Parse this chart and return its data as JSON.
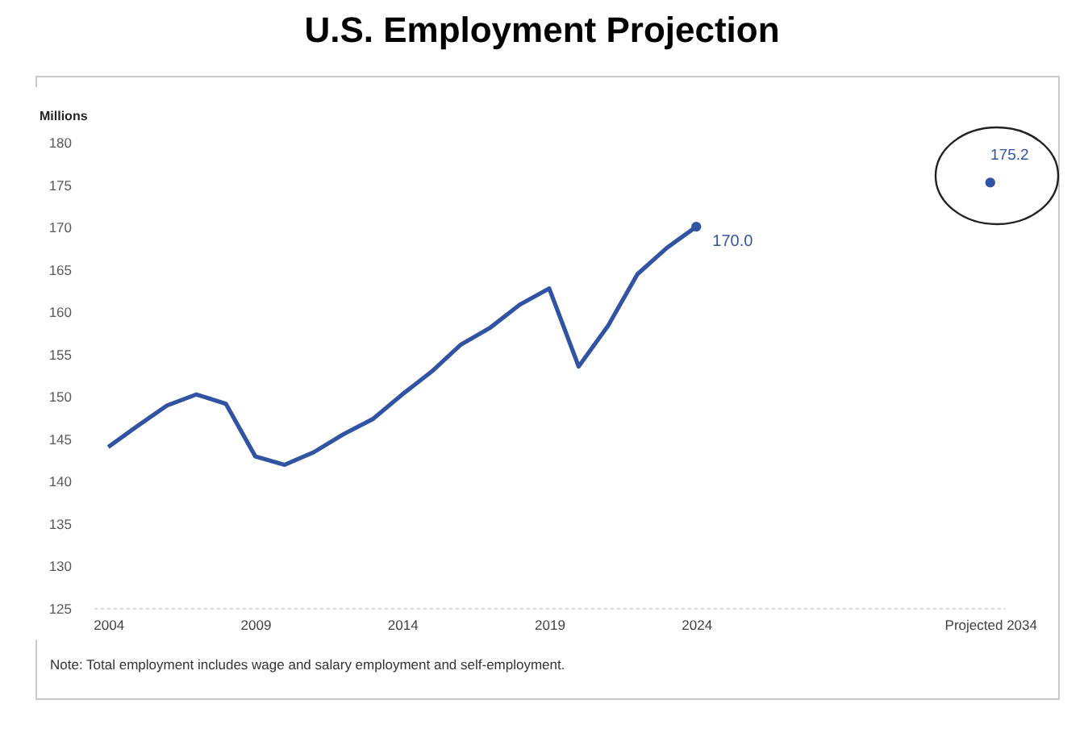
{
  "chart_data": {
    "type": "line",
    "title": "U.S. Employment Projection",
    "ylabel": "Millions",
    "categories": [
      "2004",
      null,
      null,
      null,
      null,
      "2009",
      null,
      null,
      null,
      null,
      "2014",
      null,
      null,
      null,
      null,
      "2019",
      null,
      null,
      null,
      null,
      "2024",
      null,
      null,
      null,
      null,
      null,
      null,
      null,
      null,
      null,
      "Projected 2034"
    ],
    "series": [
      {
        "type": "line",
        "color": "#3153a4",
        "line_style": "solid",
        "values": [
          144.0,
          146.5,
          148.9,
          150.2,
          149.1,
          142.9,
          141.9,
          143.4,
          145.5,
          147.3,
          150.2,
          152.9,
          156.1,
          158.1,
          160.8,
          162.7,
          153.5,
          158.3,
          164.4,
          167.5,
          170.0,
          null,
          null,
          null,
          null,
          null,
          null,
          null,
          null,
          null,
          null
        ]
      },
      {
        "type": "scatter",
        "color": "#3153a4",
        "marker": "circle",
        "values": [
          null,
          null,
          null,
          null,
          null,
          null,
          null,
          null,
          null,
          null,
          null,
          null,
          null,
          null,
          null,
          null,
          null,
          null,
          null,
          null,
          170.0,
          null,
          null,
          null,
          null,
          null,
          null,
          null,
          null,
          null,
          175.2
        ],
        "value_labels": [
          null,
          null,
          null,
          null,
          null,
          null,
          null,
          null,
          null,
          null,
          null,
          null,
          null,
          null,
          null,
          null,
          null,
          null,
          null,
          null,
          "170.0",
          null,
          null,
          null,
          null,
          null,
          null,
          null,
          null,
          null,
          "175.2"
        ]
      }
    ],
    "ylim": [
      125,
      180
    ],
    "yticks": [
      125,
      130,
      135,
      140,
      145,
      150,
      155,
      160,
      165,
      170,
      175,
      180
    ],
    "grid": false,
    "annotations": [
      "Note: Total employment includes wage and salary employment and self-employment."
    ]
  }
}
